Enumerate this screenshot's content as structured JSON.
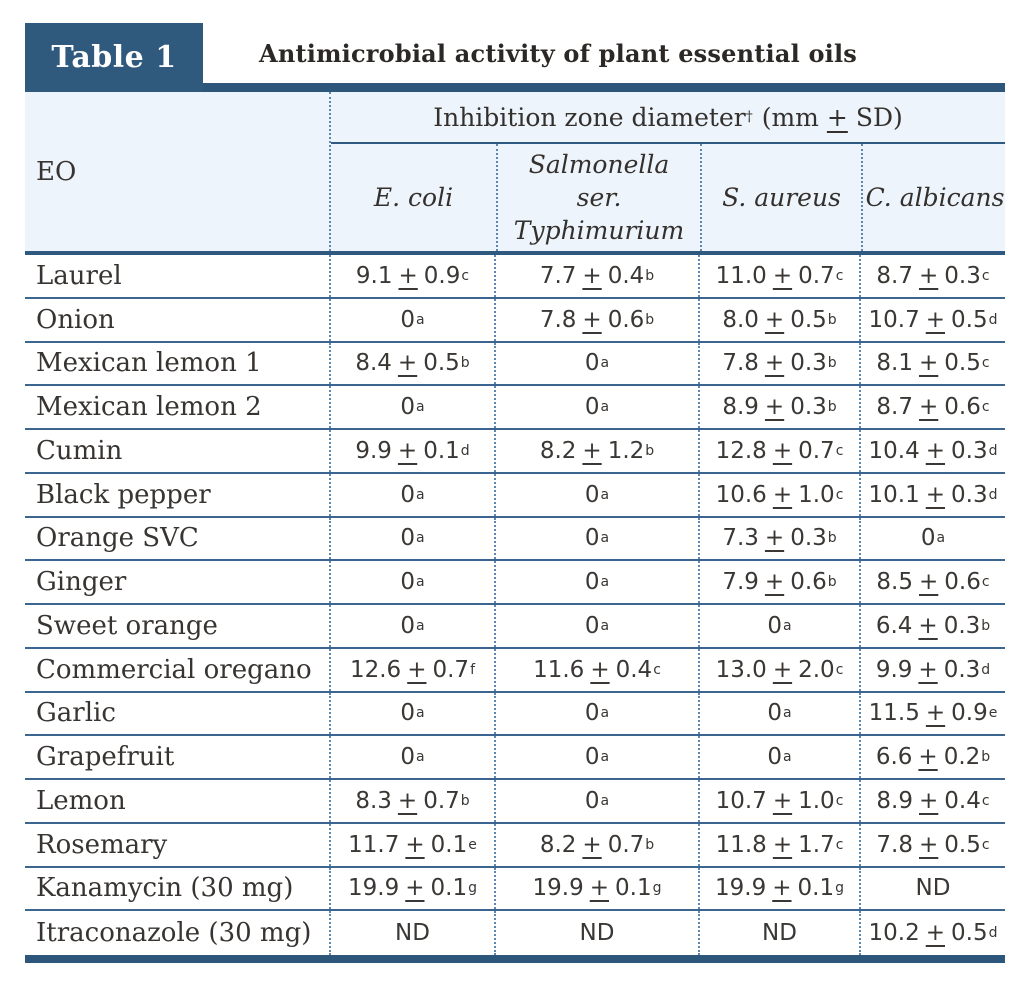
{
  "colors": {
    "badge_navy": "#2f5a7e",
    "rule_navy": "#2c567a",
    "row_line_navy": "#3c658f",
    "dotted_blue": "#5d87b1",
    "header_bg": "#edf4fb",
    "text_dark": "#383431"
  },
  "caption": {
    "badge": "Table 1",
    "title": "Antimicrobial activity of plant essential oils"
  },
  "chart_data": {
    "type": "table",
    "title": "Antimicrobial activity of plant essential oils",
    "corner_header": "EO",
    "spanner": {
      "label": "Inhibition zone diameter",
      "sup": "†",
      "unit_pre": "(mm",
      "plus_minus": "+",
      "unit_post": "SD)",
      "full_text": "Inhibition zone diameter† (mm ± SD)"
    },
    "columns": [
      "E. coli",
      "Salmonella\nser.\nTyphimurium",
      "S. aureus",
      "C. albicans"
    ],
    "rows": [
      {
        "label": "Laurel",
        "cells": [
          {
            "v": "9.1",
            "sd": "0.9",
            "sup": "c"
          },
          {
            "v": "7.7",
            "sd": "0.4",
            "sup": "b"
          },
          {
            "v": "11.0",
            "sd": "0.7",
            "sup": "c"
          },
          {
            "v": "8.7",
            "sd": "0.3",
            "sup": "c"
          }
        ]
      },
      {
        "label": "Onion",
        "cells": [
          {
            "v": "0",
            "sup": "a"
          },
          {
            "v": "7.8",
            "sd": "0.6",
            "sup": "b"
          },
          {
            "v": "8.0",
            "sd": "0.5",
            "sup": "b"
          },
          {
            "v": "10.7",
            "sd": "0.5",
            "sup": "d"
          }
        ]
      },
      {
        "label": "Mexican lemon 1",
        "cells": [
          {
            "v": "8.4",
            "sd": "0.5",
            "sup": "b"
          },
          {
            "v": "0",
            "sup": "a"
          },
          {
            "v": "7.8",
            "sd": "0.3",
            "sup": "b"
          },
          {
            "v": "8.1",
            "sd": "0.5",
            "sup": "c"
          }
        ]
      },
      {
        "label": "Mexican lemon 2",
        "cells": [
          {
            "v": "0",
            "sup": "a"
          },
          {
            "v": "0",
            "sup": "a"
          },
          {
            "v": "8.9",
            "sd": "0.3",
            "sup": "b"
          },
          {
            "v": "8.7",
            "sd": "0.6",
            "sup": "c"
          }
        ]
      },
      {
        "label": "Cumin",
        "cells": [
          {
            "v": "9.9",
            "sd": "0.1",
            "sup": "d"
          },
          {
            "v": "8.2",
            "sd": "1.2",
            "sup": "b"
          },
          {
            "v": "12.8",
            "sd": "0.7",
            "sup": "c"
          },
          {
            "v": "10.4",
            "sd": "0.3",
            "sup": "d"
          }
        ]
      },
      {
        "label": "Black pepper",
        "cells": [
          {
            "v": "0",
            "sup": "a"
          },
          {
            "v": "0",
            "sup": "a"
          },
          {
            "v": "10.6",
            "sd": "1.0",
            "sup": "c"
          },
          {
            "v": "10.1",
            "sd": "0.3",
            "sup": "d"
          }
        ]
      },
      {
        "label": "Orange SVC",
        "cells": [
          {
            "v": "0",
            "sup": "a"
          },
          {
            "v": "0",
            "sup": "a"
          },
          {
            "v": "7.3",
            "sd": "0.3",
            "sup": "b"
          },
          {
            "v": "0",
            "sup": "a"
          }
        ]
      },
      {
        "label": "Ginger",
        "cells": [
          {
            "v": "0",
            "sup": "a"
          },
          {
            "v": "0",
            "sup": "a"
          },
          {
            "v": "7.9",
            "sd": "0.6",
            "sup": "b"
          },
          {
            "v": "8.5",
            "sd": "0.6",
            "sup": "c"
          }
        ]
      },
      {
        "label": "Sweet orange",
        "cells": [
          {
            "v": "0",
            "sup": "a"
          },
          {
            "v": "0",
            "sup": "a"
          },
          {
            "v": "0",
            "sup": "a"
          },
          {
            "v": "6.4",
            "sd": "0.3",
            "sup": "b"
          }
        ]
      },
      {
        "label": "Commercial oregano",
        "cells": [
          {
            "v": "12.6",
            "sd": "0.7",
            "sup": "f"
          },
          {
            "v": "11.6",
            "sd": "0.4",
            "sup": "c"
          },
          {
            "v": "13.0",
            "sd": "2.0",
            "sup": "c"
          },
          {
            "v": "9.9",
            "sd": "0.3",
            "sup": "d"
          }
        ]
      },
      {
        "label": "Garlic",
        "cells": [
          {
            "v": "0",
            "sup": "a"
          },
          {
            "v": "0",
            "sup": "a"
          },
          {
            "v": "0",
            "sup": "a"
          },
          {
            "v": "11.5",
            "sd": "0.9",
            "sup": "e"
          }
        ]
      },
      {
        "label": "Grapefruit",
        "cells": [
          {
            "v": "0",
            "sup": "a"
          },
          {
            "v": "0",
            "sup": "a"
          },
          {
            "v": "0",
            "sup": "a"
          },
          {
            "v": "6.6",
            "sd": "0.2",
            "sup": "b"
          }
        ]
      },
      {
        "label": "Lemon",
        "cells": [
          {
            "v": "8.3",
            "sd": "0.7",
            "sup": "b"
          },
          {
            "v": "0",
            "sup": "a"
          },
          {
            "v": "10.7",
            "sd": "1.0",
            "sup": "c"
          },
          {
            "v": "8.9",
            "sd": "0.4",
            "sup": "c"
          }
        ]
      },
      {
        "label": "Rosemary",
        "cells": [
          {
            "v": "11.7",
            "sd": "0.1",
            "sup": "e"
          },
          {
            "v": "8.2",
            "sd": "0.7",
            "sup": "b"
          },
          {
            "v": "11.8",
            "sd": "1.7",
            "sup": "c"
          },
          {
            "v": "7.8",
            "sd": "0.5",
            "sup": "c"
          }
        ]
      },
      {
        "label": "Kanamycin (30 mg)",
        "cells": [
          {
            "v": "19.9",
            "sd": "0.1",
            "sup": "g"
          },
          {
            "v": "19.9",
            "sd": "0.1",
            "sup": "g"
          },
          {
            "v": "19.9",
            "sd": "0.1",
            "sup": "g"
          },
          {
            "v": "ND"
          }
        ]
      },
      {
        "label": "Itraconazole (30 mg)",
        "cells": [
          {
            "v": "ND"
          },
          {
            "v": "ND"
          },
          {
            "v": "ND"
          },
          {
            "v": "10.2",
            "sd": "0.5",
            "sup": "d"
          }
        ]
      }
    ]
  }
}
